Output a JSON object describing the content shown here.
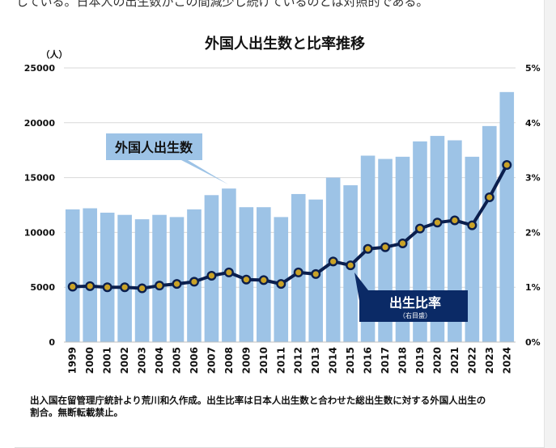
{
  "page": {
    "top_text": "している。日本人の出生数がこの間減少し続けているのとは対照的である。",
    "caption_line1": "出入国在留管理庁統計より荒川和久作成。出生比率は日本人出生数と合わせた総出生数に対する外国人出生の",
    "caption_line2": "割合。無断転載禁止。"
  },
  "chart_data": {
    "type": "bar+line",
    "title": "外国人出生数と比率推移",
    "y_left_unit": "（人）",
    "y_left_ticks": [
      "0",
      "5000",
      "10000",
      "15000",
      "20000",
      "25000"
    ],
    "y_right_ticks": [
      "0%",
      "1%",
      "2%",
      "3%",
      "4%",
      "5%"
    ],
    "ylim_left": [
      0,
      25000
    ],
    "ylim_right": [
      0,
      5
    ],
    "categories": [
      "1999",
      "2000",
      "2001",
      "2002",
      "2003",
      "2004",
      "2005",
      "2006",
      "2007",
      "2008",
      "2009",
      "2010",
      "2011",
      "2012",
      "2013",
      "2014",
      "2015",
      "2016",
      "2017",
      "2018",
      "2019",
      "2020",
      "2021",
      "2022",
      "2023",
      "2024"
    ],
    "series": [
      {
        "name": "外国人出生数",
        "kind": "bar",
        "axis": "left",
        "values": [
          12100,
          12200,
          11800,
          11600,
          11200,
          11600,
          11400,
          12100,
          13400,
          14000,
          12300,
          12300,
          11400,
          13500,
          13000,
          15000,
          14300,
          17000,
          16700,
          16900,
          18300,
          18800,
          18400,
          16900,
          19700,
          22800
        ]
      },
      {
        "name": "出生比率",
        "sublabel": "（右目盛）",
        "kind": "line",
        "axis": "right",
        "values": [
          1.01,
          1.02,
          1.0,
          1.0,
          0.98,
          1.03,
          1.06,
          1.1,
          1.21,
          1.27,
          1.14,
          1.13,
          1.06,
          1.27,
          1.24,
          1.47,
          1.4,
          1.7,
          1.73,
          1.8,
          2.07,
          2.18,
          2.22,
          2.13,
          2.64,
          3.23
        ]
      }
    ],
    "grid": "horizontal",
    "colors": {
      "bar": "#9dc3e6",
      "line": "#0b1f4e",
      "marker_fill": "#c9a227",
      "callout_bar": "#9dc3e6",
      "callout_line": "#0b2a66",
      "grid": "#d9d9d9"
    }
  }
}
